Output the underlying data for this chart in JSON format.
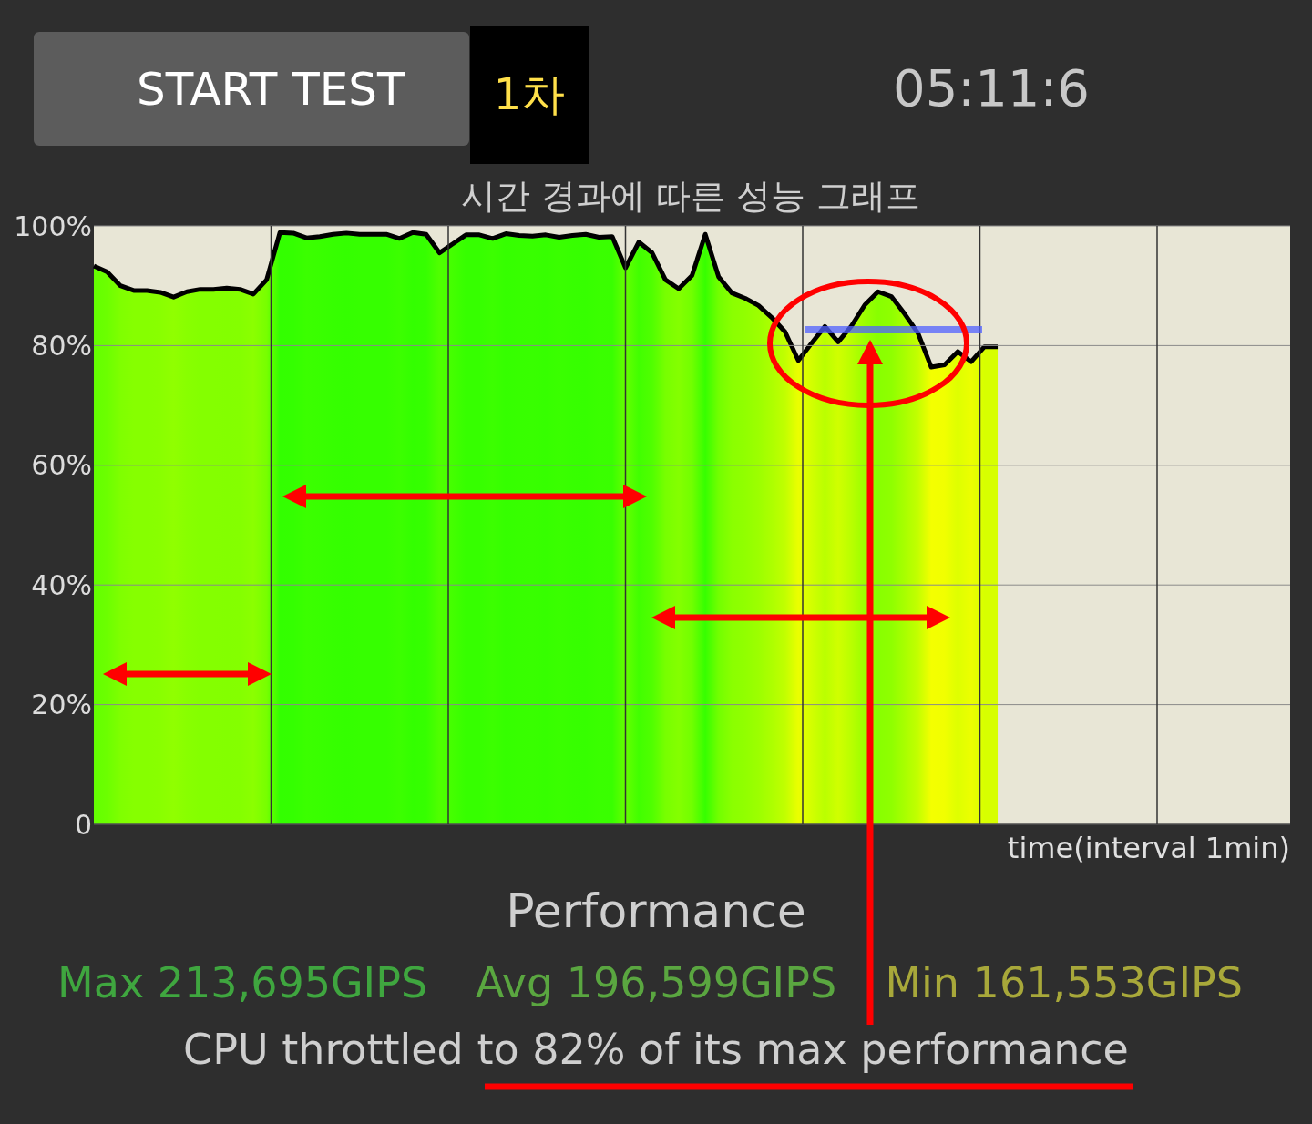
{
  "chart_data": {
    "type": "area",
    "title": "시간 경과에 따른 성능 그래프",
    "xlabel": "time(interval 1min)",
    "categories": [
      null,
      null,
      null,
      null,
      null,
      null,
      null,
      null,
      null,
      null,
      null,
      null,
      null,
      null,
      null,
      null,
      null,
      null,
      null,
      null,
      null,
      null,
      null,
      null,
      null,
      null,
      null,
      null,
      null,
      null,
      null,
      null,
      null,
      null,
      null,
      null,
      null,
      null,
      null,
      null,
      null,
      null,
      null,
      null,
      null,
      null,
      null,
      null,
      null,
      null,
      null,
      null,
      null,
      null,
      null,
      null,
      null,
      null,
      null,
      null,
      null,
      null,
      null,
      null,
      null,
      null,
      null,
      null,
      null,
      null,
      null,
      null,
      null,
      null,
      null,
      null,
      null,
      null,
      null,
      null,
      null,
      null,
      null,
      null,
      null,
      null,
      null,
      null,
      null,
      null,
      null
    ],
    "series": [
      {
        "color": "#000000",
        "values": [
          93.3,
          92.3,
          90,
          89.2,
          89.2,
          88.9,
          88.1,
          89,
          89.4,
          89.4,
          89.6,
          89.4,
          88.6,
          91,
          98.9,
          98.8,
          98,
          98.2,
          98.6,
          98.8,
          98.6,
          98.6,
          98.6,
          97.9,
          98.9,
          98.6,
          95.5,
          97,
          98.5,
          98.5,
          97.9,
          98.7,
          98.4,
          98.3,
          98.5,
          98.1,
          98.4,
          98.6,
          98.1,
          98.2,
          93,
          97.3,
          95.5,
          91,
          89.5,
          91.7,
          98.6,
          91.5,
          88.8,
          87.9,
          86.7,
          84.7,
          82.3,
          77.5,
          80.4,
          83.2,
          80.6,
          83.3,
          86.8,
          89,
          88.2,
          85.3,
          82.1,
          76.4,
          76.8,
          79,
          77.3,
          79.8,
          79.8,
          null,
          null,
          null,
          null,
          null,
          null,
          null,
          null,
          null,
          null,
          null,
          null,
          null,
          null,
          null,
          null,
          null,
          null,
          null,
          null,
          null,
          null
        ]
      }
    ],
    "ylim": [
      0,
      100
    ],
    "yticks": [
      0,
      {
        "value": 20,
        "label": "20%"
      },
      {
        "value": 40,
        "label": "40%"
      },
      {
        "value": 60,
        "label": "60%"
      },
      {
        "value": 80,
        "label": "80%"
      },
      {
        "value": 100,
        "label": "100%"
      }
    ],
    "grid": true,
    "annotations": [
      "START TEST",
      "1차",
      "05:11:6",
      "Performance",
      "Max 213,695GIPS",
      "Avg 196,599GIPS",
      "Min 161,553GIPS",
      "CPU throttled to 82% of its max performance"
    ]
  }
}
